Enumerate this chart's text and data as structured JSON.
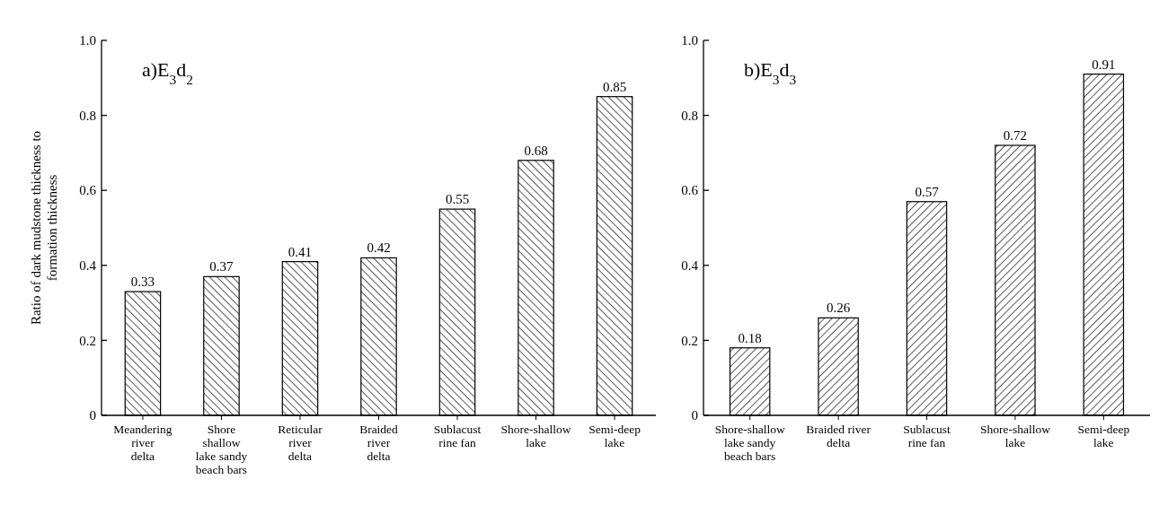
{
  "chart_data": [
    {
      "type": "bar",
      "title": "a)E$_{3}$d$_{2}$",
      "ylabel": "Ratio of dark mudstone thickness to formation thickness",
      "categories": [
        "Meandering river delta",
        "Shore shallow lake sandy beach bars",
        "Reticular river delta",
        "Braided river delta",
        "Sublacust rine fan",
        "Shore-shallow lake",
        "Semi-deep lake"
      ],
      "values": [
        0.33,
        0.37,
        0.41,
        0.42,
        0.55,
        0.68,
        0.85
      ],
      "color": "#000000",
      "ylim": [
        0,
        1
      ],
      "yticks": [
        0,
        0.2,
        0.4,
        0.6,
        0.8,
        {
          "value": 1,
          "label": "1.0"
        }
      ],
      "data_labels": true
    },
    {
      "type": "bar",
      "title": "b)E$_{3}$d$_{3}$",
      "categories": [
        "Shore-shallow lake sandy beach bars",
        "Braided river delta",
        "Sublacust rine fan",
        "Shore-shallow lake",
        "Semi-deep lake"
      ],
      "values": [
        0.18,
        0.26,
        0.57,
        0.72,
        0.91
      ],
      "color": "#000000",
      "ylim": [
        0,
        1
      ],
      "yticks": [
        0,
        0.2,
        0.4,
        0.6,
        0.8,
        {
          "value": 1,
          "label": "1.0"
        }
      ],
      "data_labels": true
    }
  ]
}
